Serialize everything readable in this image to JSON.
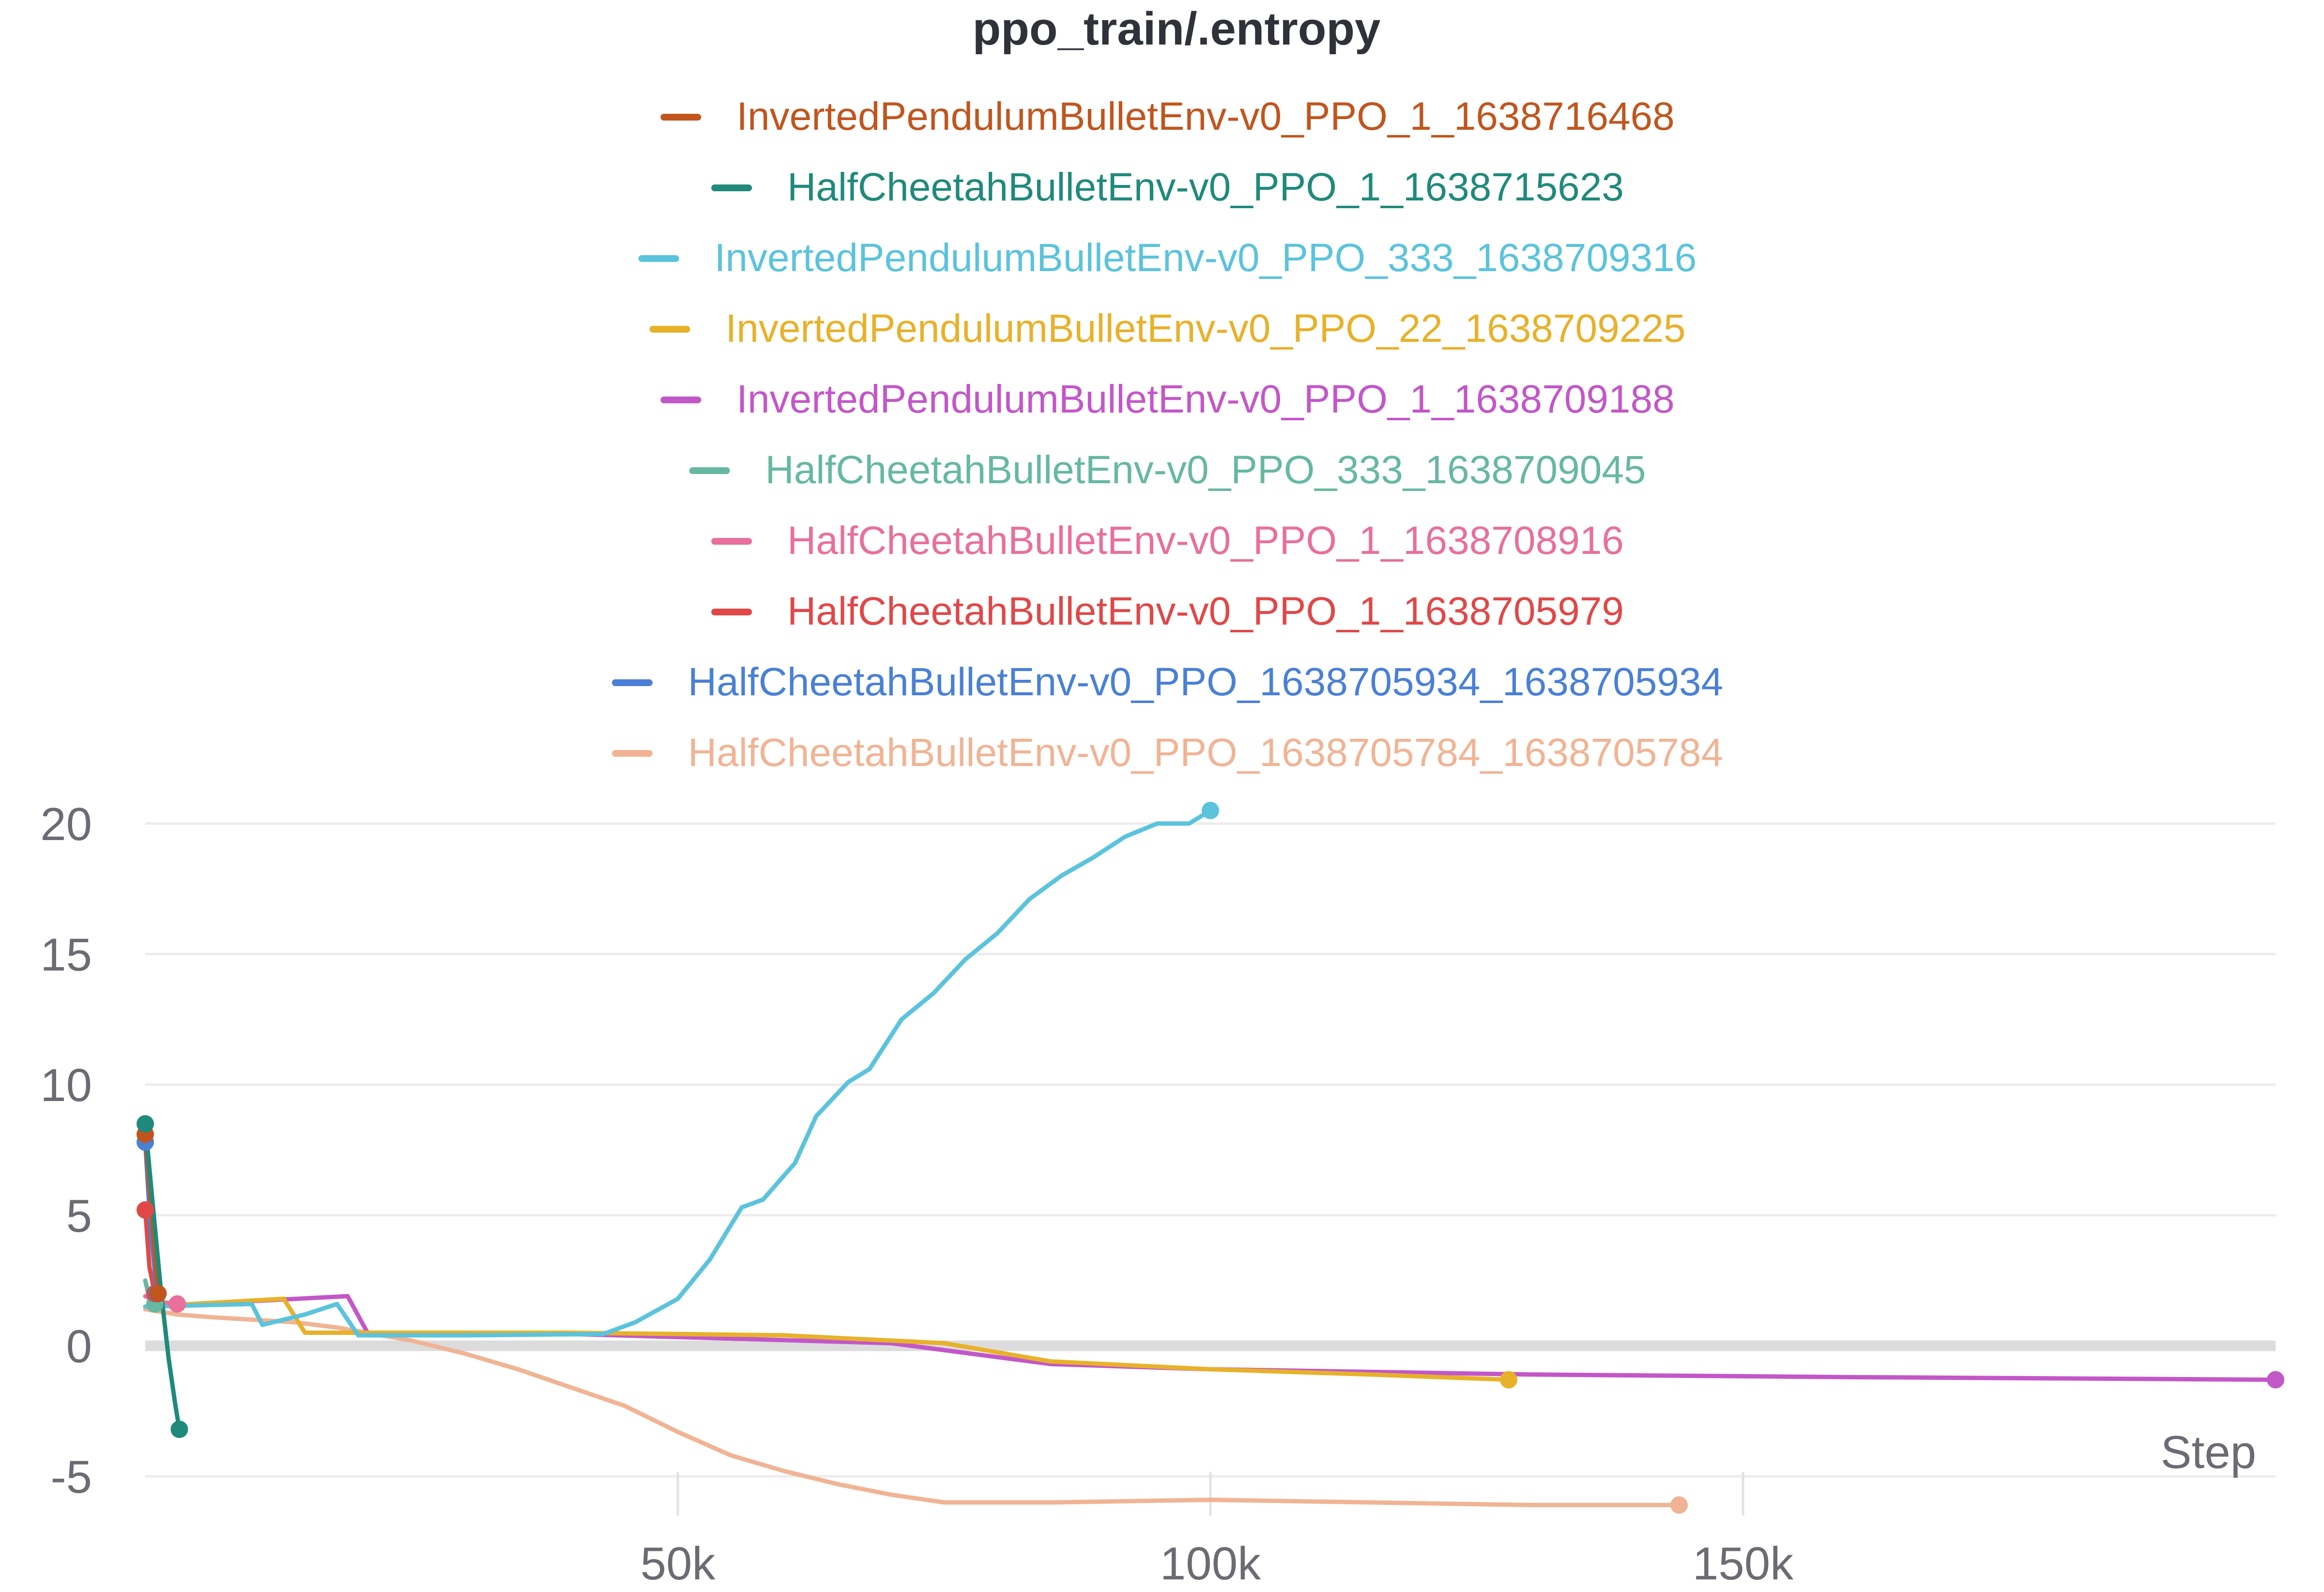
{
  "chart_data": {
    "type": "line",
    "title": "ppo_train/.entropy",
    "xlabel": "Step",
    "ylabel": "",
    "xlim": [
      0,
      200000
    ],
    "ylim": [
      -6.5,
      21.5
    ],
    "xticks": [
      50000,
      100000,
      150000
    ],
    "xtick_labels": [
      "50k",
      "100k",
      "150k"
    ],
    "yticks": [
      20,
      15,
      10,
      5,
      0,
      -5
    ],
    "ytick_labels": [
      "20",
      "15",
      "10",
      "5",
      "0",
      "-5"
    ],
    "grid": true,
    "legend_position": "top",
    "series": [
      {
        "name": "InvertedPendulumBulletEnv-v0_PPO_1_1638716468",
        "color": "#c0561e",
        "points": [
          [
            0,
            8.1
          ],
          [
            500,
            5.5
          ],
          [
            1200,
            2.0
          ]
        ]
      },
      {
        "name": "HalfCheetahBulletEnv-v0_PPO_1_1638715623",
        "color": "#1f8a7a",
        "points": [
          [
            0,
            8.5
          ],
          [
            800,
            5.0
          ],
          [
            1500,
            2.0
          ],
          [
            2200,
            -0.5
          ],
          [
            2800,
            -2.2
          ],
          [
            3200,
            -3.2
          ]
        ]
      },
      {
        "name": "InvertedPendulumBulletEnv-v0_PPO_333_1638709316",
        "color": "#5bc3dc",
        "points": [
          [
            0,
            1.5
          ],
          [
            10000,
            1.6
          ],
          [
            11000,
            0.8
          ],
          [
            15000,
            1.2
          ],
          [
            18000,
            1.6
          ],
          [
            20000,
            0.4
          ],
          [
            30000,
            0.4
          ],
          [
            43000,
            0.45
          ],
          [
            46000,
            0.9
          ],
          [
            50000,
            1.8
          ],
          [
            53000,
            3.3
          ],
          [
            56000,
            5.3
          ],
          [
            58000,
            5.6
          ],
          [
            61000,
            7.0
          ],
          [
            63000,
            8.8
          ],
          [
            66000,
            10.1
          ],
          [
            68000,
            10.6
          ],
          [
            71000,
            12.5
          ],
          [
            74000,
            13.5
          ],
          [
            77000,
            14.8
          ],
          [
            80000,
            15.8
          ],
          [
            83000,
            17.1
          ],
          [
            86000,
            18.0
          ],
          [
            89000,
            18.7
          ],
          [
            92000,
            19.5
          ],
          [
            95000,
            20.0
          ],
          [
            98000,
            20.0
          ],
          [
            100000,
            20.5
          ]
        ]
      },
      {
        "name": "InvertedPendulumBulletEnv-v0_PPO_22_1638709225",
        "color": "#e8b12a",
        "points": [
          [
            0,
            1.5
          ],
          [
            13000,
            1.8
          ],
          [
            15000,
            0.5
          ],
          [
            40000,
            0.5
          ],
          [
            60000,
            0.4
          ],
          [
            75000,
            0.1
          ],
          [
            85000,
            -0.6
          ],
          [
            100000,
            -0.9
          ],
          [
            115000,
            -1.1
          ],
          [
            128000,
            -1.3
          ]
        ]
      },
      {
        "name": "InvertedPendulumBulletEnv-v0_PPO_1_1638709188",
        "color": "#c257c8",
        "points": [
          [
            0,
            1.5
          ],
          [
            19000,
            1.9
          ],
          [
            21000,
            0.4
          ],
          [
            40000,
            0.45
          ],
          [
            70000,
            0.1
          ],
          [
            85000,
            -0.7
          ],
          [
            100000,
            -0.9
          ],
          [
            130000,
            -1.1
          ],
          [
            160000,
            -1.2
          ],
          [
            200000,
            -1.3
          ]
        ]
      },
      {
        "name": "HalfCheetahBulletEnv-v0_PPO_333_1638709045",
        "color": "#66b8a2",
        "points": [
          [
            0,
            2.5
          ],
          [
            400,
            1.8
          ],
          [
            900,
            1.6
          ]
        ]
      },
      {
        "name": "HalfCheetahBulletEnv-v0_PPO_1_1638708916",
        "color": "#e8709a",
        "points": [
          [
            0,
            1.9
          ],
          [
            1000,
            1.7
          ],
          [
            3000,
            1.6
          ]
        ]
      },
      {
        "name": "HalfCheetahBulletEnv-v0_PPO_1_1638705979",
        "color": "#e04848",
        "points": [
          [
            0,
            5.2
          ],
          [
            400,
            3.0
          ],
          [
            900,
            2.0
          ]
        ]
      },
      {
        "name": "HalfCheetahBulletEnv-v0_PPO_1638705934_1638705934",
        "color": "#4a80d6",
        "points": [
          [
            0,
            7.8
          ],
          [
            500,
            4.5
          ],
          [
            1100,
            2.0
          ]
        ]
      },
      {
        "name": "HalfCheetahBulletEnv-v0_PPO_1638705784_1638705784",
        "color": "#f0b494",
        "points": [
          [
            0,
            1.4
          ],
          [
            3000,
            1.2
          ],
          [
            6000,
            1.1
          ],
          [
            10000,
            1.0
          ],
          [
            14000,
            0.9
          ],
          [
            18000,
            0.7
          ],
          [
            25000,
            0.2
          ],
          [
            30000,
            -0.3
          ],
          [
            35000,
            -0.9
          ],
          [
            40000,
            -1.6
          ],
          [
            45000,
            -2.3
          ],
          [
            50000,
            -3.3
          ],
          [
            55000,
            -4.2
          ],
          [
            60000,
            -4.8
          ],
          [
            65000,
            -5.3
          ],
          [
            70000,
            -5.7
          ],
          [
            75000,
            -6.0
          ],
          [
            85000,
            -6.0
          ],
          [
            100000,
            -5.9
          ],
          [
            115000,
            -6.0
          ],
          [
            130000,
            -6.1
          ],
          [
            144000,
            -6.1
          ]
        ]
      }
    ]
  }
}
